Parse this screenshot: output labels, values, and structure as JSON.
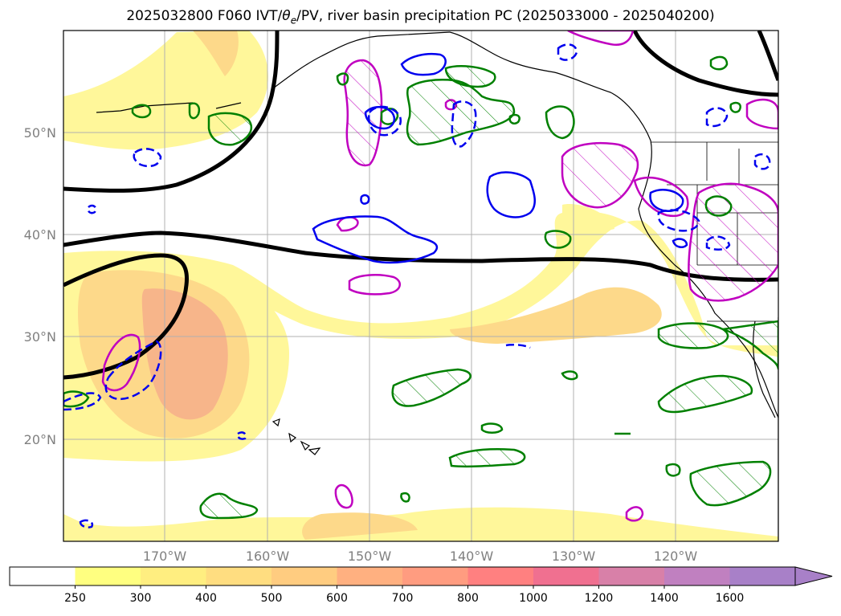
{
  "title": {
    "prefix": "2025032800 F060 IVT/",
    "theta": "θ",
    "theta_sub": "e",
    "suffix": "/PV, river basin precipitation PC (2025033000 - 2025040200)"
  },
  "map": {
    "lat_labels": [
      "50°N",
      "40°N",
      "30°N",
      "20°N"
    ],
    "lon_labels": [
      "170°W",
      "160°W",
      "150°W",
      "140°W",
      "130°W",
      "120°W"
    ],
    "axis_label_color": "#808080",
    "contour_colors": {
      "ivt_fill_low": "#fff79a",
      "ivt_fill_mid": "#fdd98a",
      "ivt_fill_high": "#f7b58a",
      "pv_line": "#000000",
      "theta_e_solid": "#0000ee",
      "theta_e_dashed": "#0000ee",
      "green_contour": "#008000",
      "magenta_contour": "#c000c0"
    }
  },
  "colorbar": {
    "tick_labels": [
      "250",
      "300",
      "400",
      "500",
      "600",
      "700",
      "800",
      "1000",
      "1200",
      "1400",
      "1600"
    ],
    "colors": [
      "#ffffff",
      "#ffff80",
      "#ffee80",
      "#ffdd80",
      "#ffcc80",
      "#ffb080",
      "#ff9c80",
      "#ff8080",
      "#f07090",
      "#d880a8",
      "#c080c0",
      "#a880c8"
    ]
  }
}
